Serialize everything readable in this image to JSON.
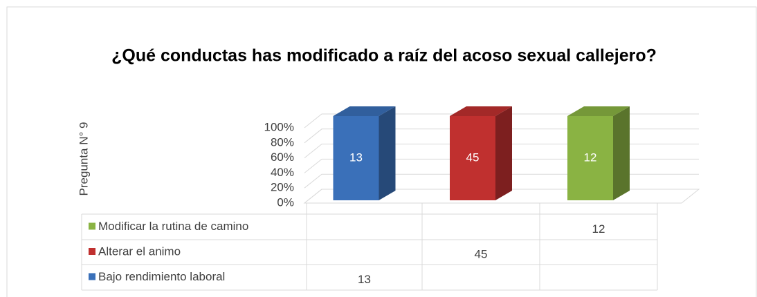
{
  "chart_data": {
    "type": "bar",
    "stacking": "percent",
    "title": "¿Qué conductas has modificado a raíz del acoso sexual callejero?",
    "y_axis_label": "Pregunta N° 9",
    "categories": [
      null,
      null,
      null
    ],
    "series": [
      {
        "name": "Modificar la rutina de camino",
        "color": "#8ab343",
        "values": [
          null,
          null,
          12
        ]
      },
      {
        "name": "Alterar el animo",
        "color": "#c0302f",
        "values": [
          null,
          45,
          null
        ]
      },
      {
        "name": "Bajo rendimiento laboral",
        "color": "#3a70b9",
        "values": [
          13,
          null,
          null
        ]
      }
    ],
    "ylim": [
      0,
      100
    ],
    "yticks": [
      {
        "value": 0,
        "label": "0%"
      },
      {
        "value": 20,
        "label": "20%"
      },
      {
        "value": 40,
        "label": "40%"
      },
      {
        "value": 60,
        "label": "60%"
      },
      {
        "value": 80,
        "label": "80%"
      },
      {
        "value": 100,
        "label": "100%"
      }
    ],
    "grid": true,
    "data_table": true
  }
}
